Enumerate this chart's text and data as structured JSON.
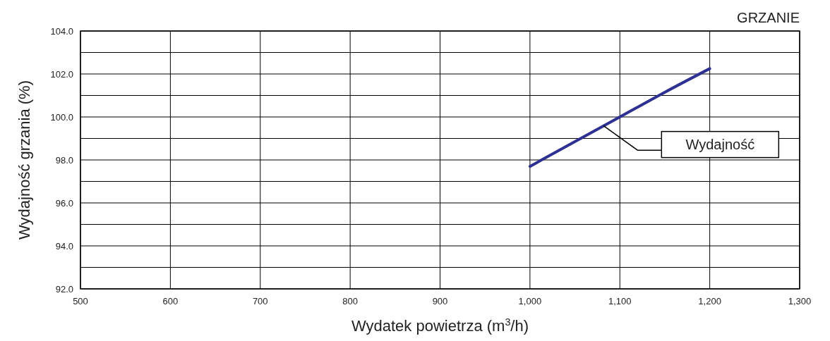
{
  "chart_data": {
    "type": "line",
    "title": "GRZANIE",
    "xlabel": "Wydatek powietrza (m$^{3}$/h)",
    "ylabel": "Wydajność grzania (%)",
    "x": [
      1000,
      1050,
      1100,
      1150,
      1200
    ],
    "series": [
      {
        "name": "Wydajność",
        "color": "#2e3192",
        "values": [
          97.7,
          98.85,
          100.0,
          101.15,
          102.25
        ]
      }
    ],
    "xlim": [
      500,
      1300
    ],
    "ylim": [
      92,
      104
    ],
    "xticks": [
      500,
      600,
      700,
      800,
      900,
      {
        "value": 1000,
        "label": "1,000"
      },
      {
        "value": 1100,
        "label": "1,100"
      },
      {
        "value": 1200,
        "label": "1,200"
      },
      {
        "value": 1300,
        "label": "1,300"
      }
    ],
    "yticks": [
      {
        "value": 92,
        "label": "92.0"
      },
      {
        "value": 93,
        "label": null
      },
      {
        "value": 94,
        "label": "94.0"
      },
      {
        "value": 95,
        "label": null
      },
      {
        "value": 96,
        "label": "96.0"
      },
      {
        "value": 97,
        "label": null
      },
      {
        "value": 98,
        "label": "98.0"
      },
      {
        "value": 99,
        "label": null
      },
      {
        "value": 100,
        "label": "100.0"
      },
      {
        "value": 101,
        "label": null
      },
      {
        "value": 102,
        "label": "102.0"
      },
      {
        "value": 103,
        "label": null
      },
      {
        "value": 104,
        "label": "104.0"
      }
    ],
    "grid": true,
    "marker": "none",
    "line_style": "solid"
  }
}
